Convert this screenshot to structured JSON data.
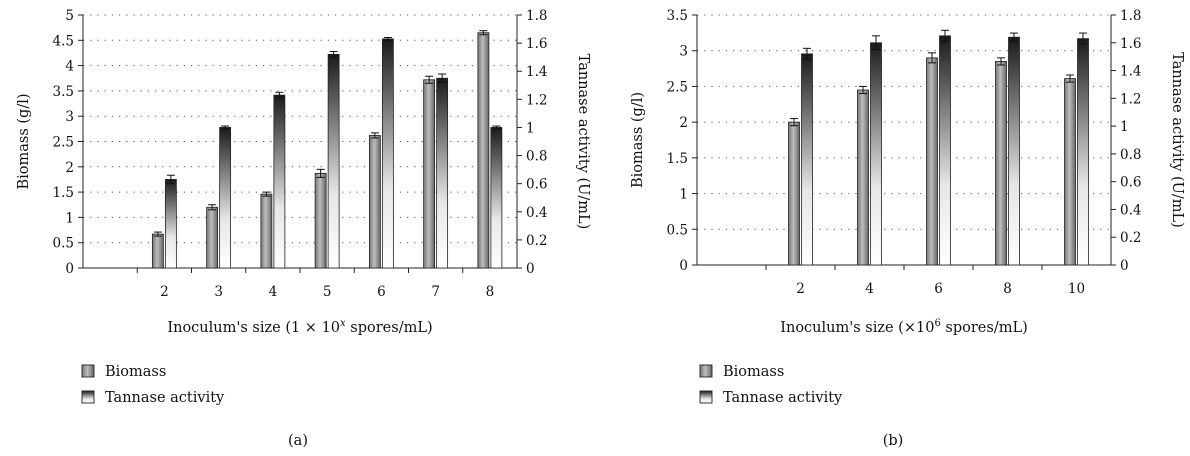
{
  "chart_data": [
    {
      "type": "bar",
      "panel_label": "(a)",
      "categories": [
        "",
        "2",
        "3",
        "4",
        "5",
        "6",
        "7",
        "8"
      ],
      "xlabel_parts": {
        "prefix": "Inoculum's size (1 × 10",
        "sup": "x",
        "suffix": " spores/mL)"
      },
      "ylabel_left": "Biomass (g/l)",
      "ylabel_right": "Tannase activity (U/mL)",
      "ylim_left": [
        0,
        5
      ],
      "ylim_right": [
        0,
        1.8
      ],
      "yticks_left": [
        "0",
        "0.5",
        "1",
        "1.5",
        "2",
        "2.5",
        "3",
        "3.5",
        "4",
        "4.5",
        "5"
      ],
      "yticks_right": [
        "0",
        "0.2",
        "0.4",
        "0.6",
        "0.8",
        "1",
        "1.2",
        "1.4",
        "1.6",
        "1.8"
      ],
      "grid": "horizontal dotted",
      "series": [
        {
          "name": "Biomass",
          "axis": "left",
          "fill": "gray gradient",
          "values": [
            null,
            0.67,
            1.2,
            1.46,
            1.87,
            2.62,
            3.72,
            4.65
          ],
          "errors": [
            null,
            0.04,
            0.05,
            0.04,
            0.08,
            0.05,
            0.07,
            0.04
          ]
        },
        {
          "name": "Tannase activity",
          "axis": "right",
          "fill": "white-to-black gradient",
          "values": [
            null,
            0.63,
            1.0,
            1.23,
            1.52,
            1.63,
            1.35,
            1.0
          ],
          "errors": [
            null,
            0.03,
            0.01,
            0.02,
            0.02,
            0.01,
            0.03,
            0.01
          ]
        }
      ],
      "legend_position": "bottom-left"
    },
    {
      "type": "bar",
      "panel_label": "(b)",
      "categories": [
        "",
        "2",
        "4",
        "6",
        "8",
        "10"
      ],
      "xlabel_parts": {
        "prefix": "Inoculum's size (×10",
        "sup": "6",
        "suffix": " spores/mL)"
      },
      "ylabel_left": "Biomass (g/l)",
      "ylabel_right": "Tannase activity (U/mL)",
      "ylim_left": [
        0,
        3.5
      ],
      "ylim_right": [
        0,
        1.8
      ],
      "yticks_left": [
        "0",
        "0.5",
        "1",
        "1.5",
        "2",
        "2.5",
        "3",
        "3.5"
      ],
      "yticks_right": [
        "0",
        "0.2",
        "0.4",
        "0.6",
        "0.8",
        "1",
        "1.2",
        "1.4",
        "1.6",
        "1.8"
      ],
      "grid": "horizontal dotted",
      "series": [
        {
          "name": "Biomass",
          "axis": "left",
          "fill": "gray gradient",
          "values": [
            null,
            2.0,
            2.45,
            2.9,
            2.85,
            2.61
          ],
          "errors": [
            null,
            0.05,
            0.05,
            0.07,
            0.05,
            0.05
          ]
        },
        {
          "name": "Tannase activity",
          "axis": "right",
          "fill": "white-to-black gradient",
          "values": [
            null,
            1.52,
            1.6,
            1.65,
            1.64,
            1.63
          ],
          "errors": [
            null,
            0.04,
            0.05,
            0.04,
            0.03,
            0.04
          ]
        }
      ],
      "legend_position": "bottom-left"
    }
  ]
}
